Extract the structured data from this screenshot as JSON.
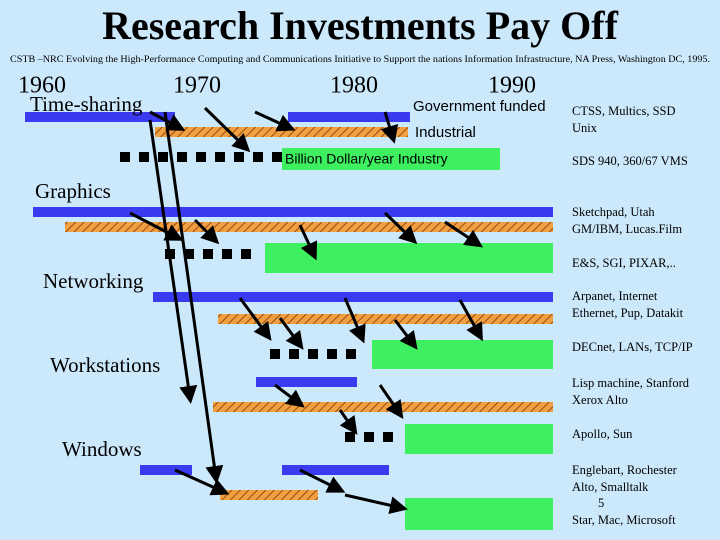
{
  "header": {
    "title": "Research Investments Pay Off",
    "source": "CSTB –NRC Evolving the High-Performance Computing and Communications Initiative to Support the nations Information Infrastructure, NA Press, Washington DC, 1995."
  },
  "timeline": {
    "decades": [
      "1960",
      "1970",
      "1980",
      "1990"
    ]
  },
  "legend": {
    "government": "Government funded",
    "industrial": "Industrial",
    "billion": "Billion Dollar/year Industry"
  },
  "topics": [
    {
      "label": "Time-sharing",
      "notes": [
        "CTSS, Multics, SSD",
        "Unix",
        "SDS 940, 360/67 VMS"
      ]
    },
    {
      "label": "Graphics",
      "notes": [
        "Sketchpad, Utah",
        "GM/IBM, Lucas.Film",
        "E&S, SGI, PIXAR,.."
      ]
    },
    {
      "label": "Networking",
      "notes": [
        "Arpanet, Internet",
        "Ethernet, Pup, Datakit",
        "DECnet, LANs, TCP/IP"
      ]
    },
    {
      "label": "Workstations",
      "notes": [
        "Lisp machine, Stanford",
        "Xerox Alto",
        "Apollo, Sun"
      ]
    },
    {
      "label": "Windows",
      "notes": [
        "Englebart, Rochester",
        "Alto, Smalltalk",
        "Star, Mac, Microsoft"
      ]
    }
  ],
  "page_number": "5"
}
